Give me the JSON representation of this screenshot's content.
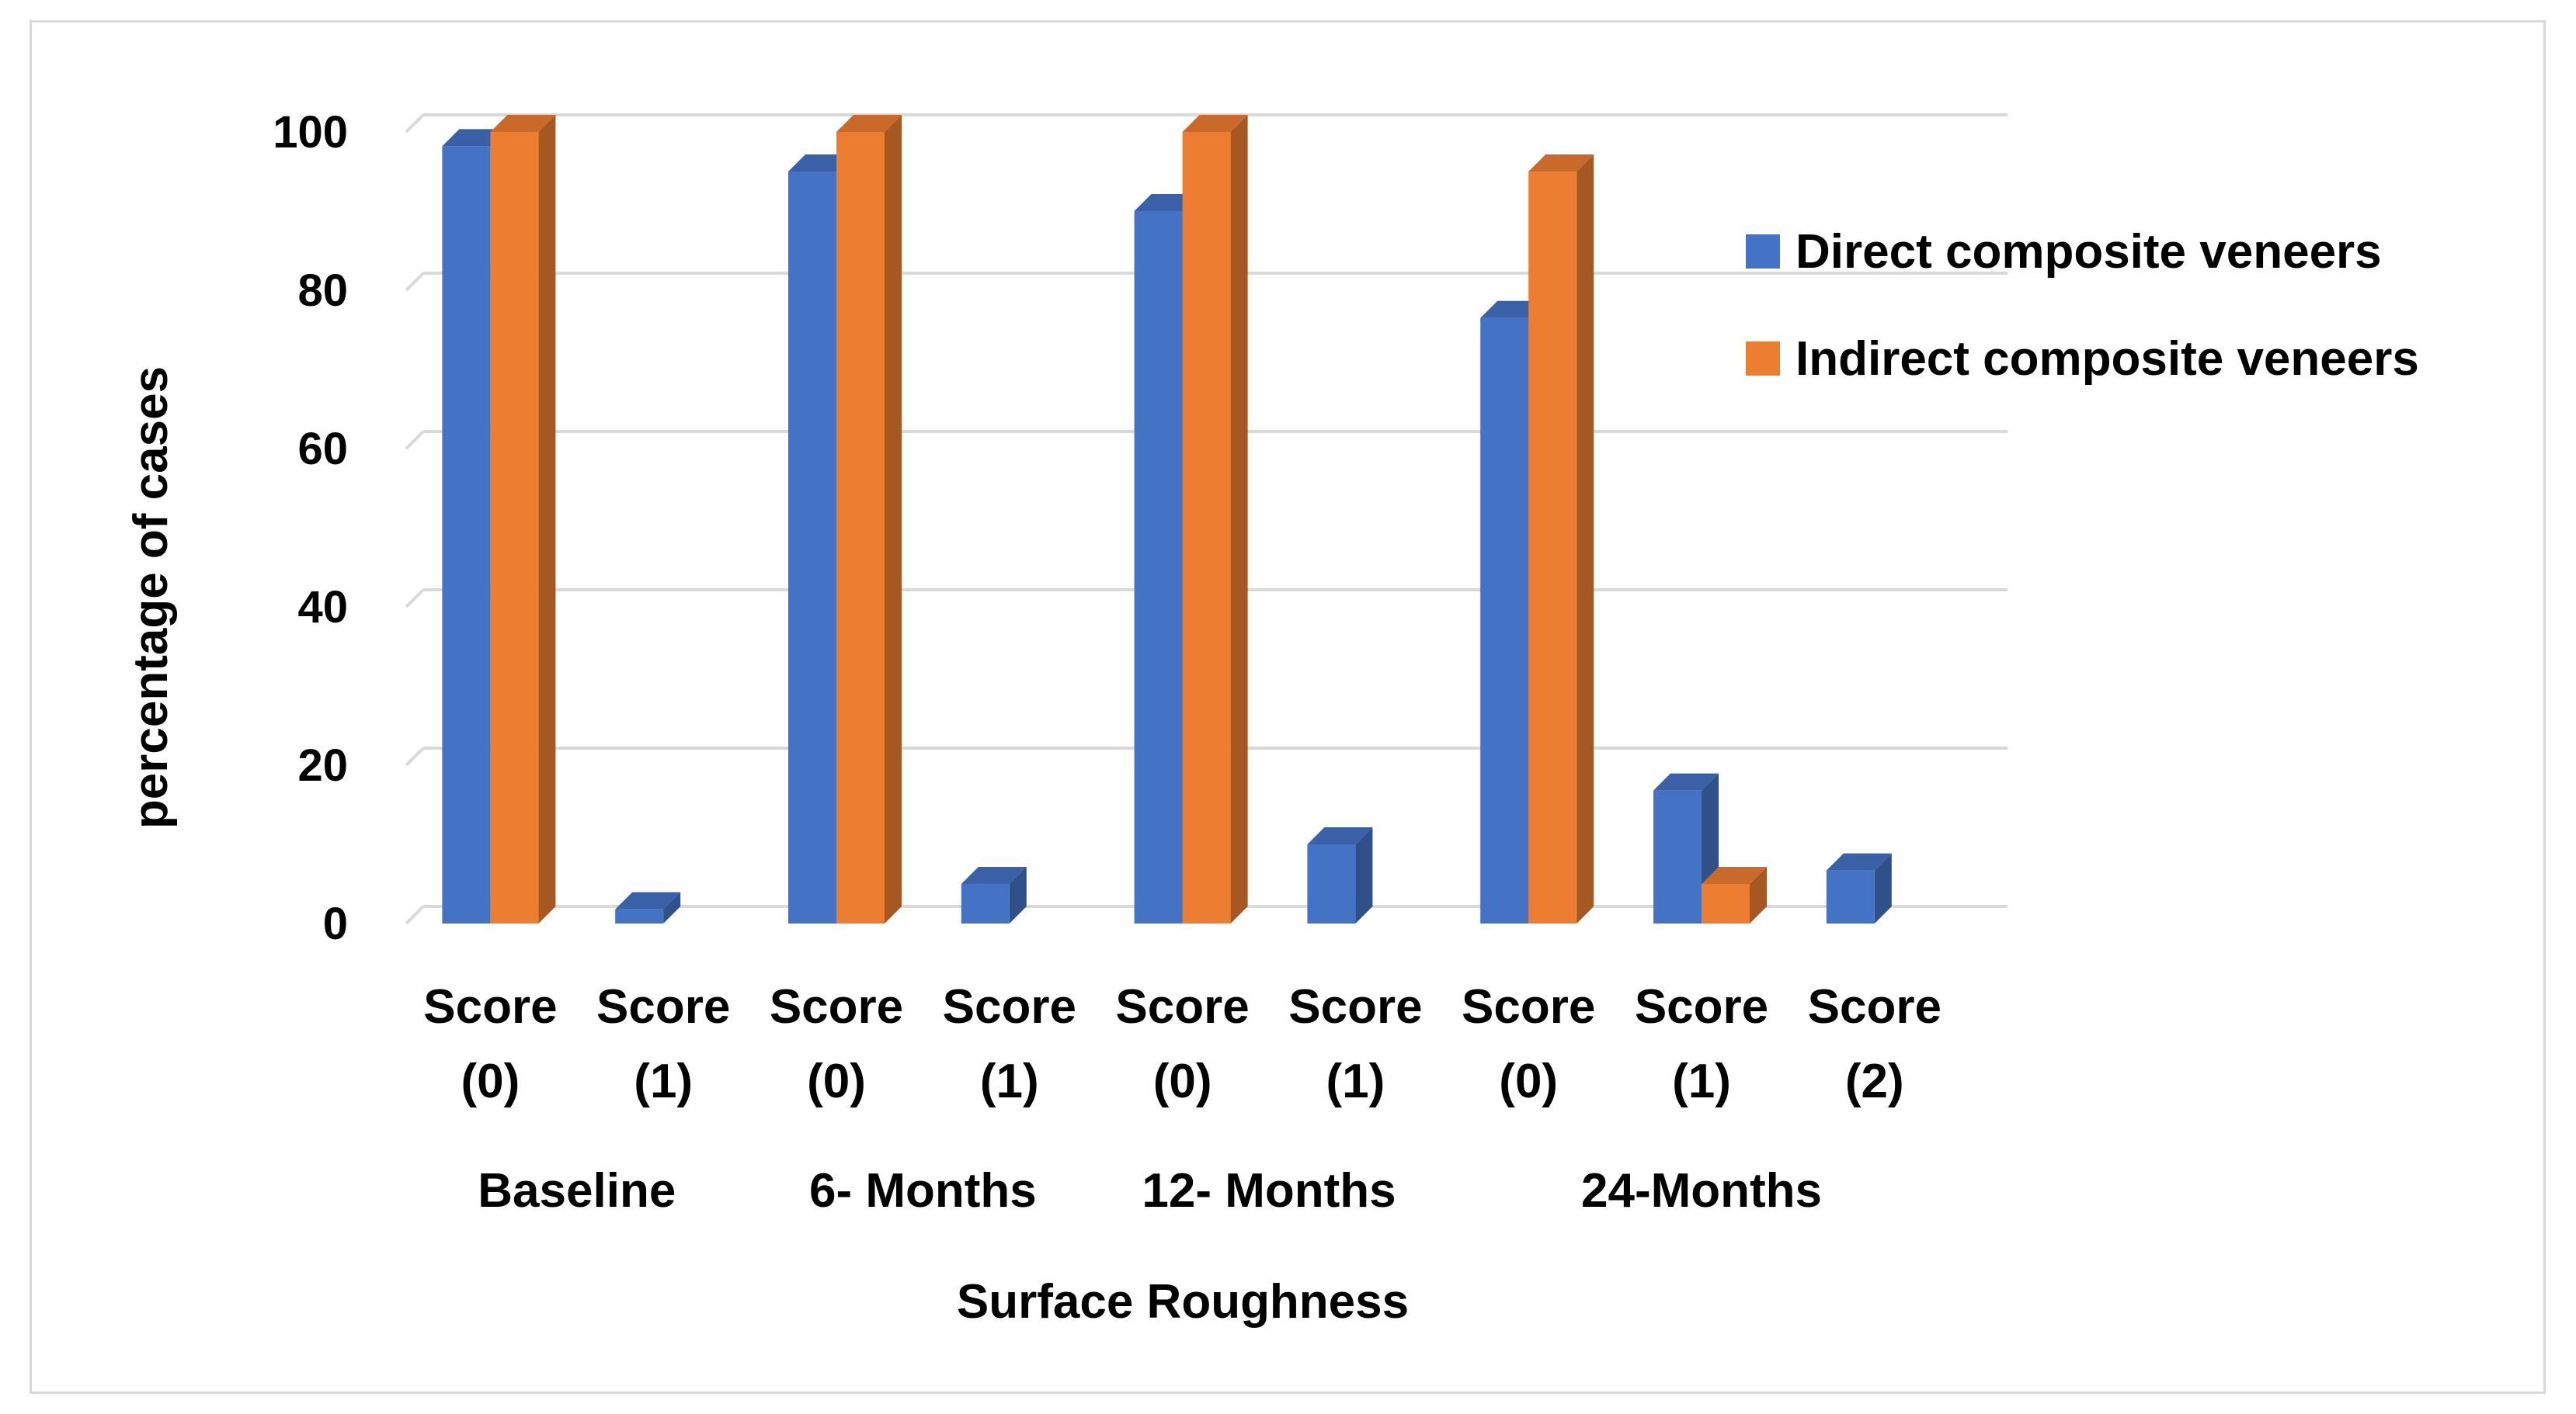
{
  "chart_data": {
    "type": "bar",
    "style": "3d-clustered-column",
    "title": "",
    "xlabel": "Surface Roughness",
    "ylabel": "percentage of cases",
    "ylim": [
      0,
      100
    ],
    "yticks": [
      "0",
      "20",
      "40",
      "60",
      "80",
      "100"
    ],
    "grid": true,
    "legend_position": "right",
    "categories": [
      {
        "line1": "Score",
        "line2": "(0)",
        "group": "Baseline"
      },
      {
        "line1": "Score",
        "line2": "(1)",
        "group": "Baseline"
      },
      {
        "line1": "Score",
        "line2": "(0)",
        "group": "6- Months"
      },
      {
        "line1": "Score",
        "line2": "(1)",
        "group": "6- Months"
      },
      {
        "line1": "Score",
        "line2": "(0)",
        "group": "12- Months"
      },
      {
        "line1": "Score",
        "line2": "(1)",
        "group": "12- Months"
      },
      {
        "line1": "Score",
        "line2": "(0)",
        "group": "24-Months"
      },
      {
        "line1": "Score",
        "line2": "(1)",
        "group": "24-Months"
      },
      {
        "line1": "Score",
        "line2": "(2)",
        "group": "24-Months"
      }
    ],
    "groups": [
      "Baseline",
      "6- Months",
      "12- Months",
      "24-Months"
    ],
    "series": [
      {
        "name": "Direct composite veneers",
        "color": "#4472c4",
        "values": [
          98.2,
          1.8,
          95,
          5,
          90,
          10,
          76.5,
          16.8,
          6.7
        ]
      },
      {
        "name": "Indirect composite veneers",
        "color": "#ed7d31",
        "values": [
          100,
          0,
          100,
          0,
          100,
          0,
          95,
          5,
          0
        ]
      }
    ]
  }
}
